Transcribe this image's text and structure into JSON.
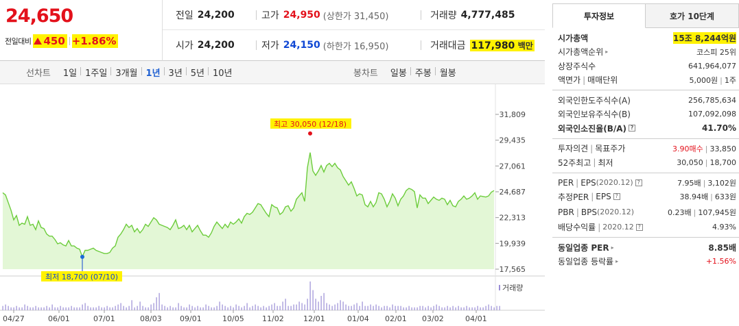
{
  "price": {
    "current": "24,650",
    "change_label": "전일대비",
    "change_amount": "450",
    "change_pct": "+1.86%"
  },
  "stats": {
    "prev_close": {
      "label": "전일",
      "value": "24,200"
    },
    "high": {
      "label": "고가",
      "value": "24,950",
      "sub": "(상한가 31,450)"
    },
    "volume": {
      "label": "거래량",
      "value": "4,777,485"
    },
    "open": {
      "label": "시가",
      "value": "24,200"
    },
    "low": {
      "label": "저가",
      "value": "24,150",
      "sub": "(하한가 16,950)"
    },
    "trade_value": {
      "label": "거래대금",
      "value": "117,980",
      "unit": "백만"
    }
  },
  "tabs": {
    "line_chart_label": "선차트",
    "periods": [
      "1일",
      "1주일",
      "3개월",
      "1년",
      "3년",
      "5년",
      "10년"
    ],
    "active_period": "1년",
    "candle_chart_label": "봉차트",
    "candle_periods": [
      "일봉",
      "주봉",
      "월봉"
    ]
  },
  "chart_data": {
    "type": "area",
    "x_tick_labels": [
      "04/27",
      "06/01",
      "07/01",
      "08/03",
      "09/01",
      "10/05",
      "11/02",
      "12/01",
      "01/04",
      "02/01",
      "03/02",
      "04/01"
    ],
    "y_tick_labels": [
      "31,809",
      "29,435",
      "27,061",
      "24,687",
      "22,313",
      "19,939",
      "17,565"
    ],
    "ylim": [
      17565,
      31809
    ],
    "max_annotation": "최고 30,050 (12/18)",
    "min_annotation": "최저 18,700 (07/10)",
    "volume_label": "거래량",
    "price_series": [
      24600,
      24400,
      23700,
      23000,
      22100,
      22500,
      21600,
      21800,
      21700,
      22400,
      21600,
      21700,
      21200,
      22000,
      21400,
      21300,
      20800,
      20600,
      20600,
      20300,
      19900,
      20000,
      19800,
      19700,
      20200,
      19700,
      19700,
      19500,
      19400,
      18700,
      19300,
      19300,
      19400,
      19500,
      19300,
      19200,
      19100,
      19000,
      19000,
      19100,
      19500,
      19700,
      20500,
      20800,
      21200,
      21700,
      21400,
      21600,
      21000,
      21300,
      20900,
      21200,
      21700,
      21500,
      21900,
      22300,
      22100,
      21700,
      21600,
      21500,
      21400,
      21200,
      21600,
      22100,
      21300,
      21400,
      21600,
      21200,
      21600,
      21000,
      21300,
      21600,
      21100,
      20700,
      20700,
      20500,
      20900,
      21500,
      21900,
      21600,
      21300,
      21700,
      21400,
      21900,
      21700,
      21900,
      22200,
      21800,
      22400,
      22700,
      22600,
      22800,
      23200,
      23600,
      23500,
      23100,
      22700,
      22400,
      23500,
      23300,
      23200,
      22600,
      22800,
      23300,
      23400,
      22900,
      23200,
      24000,
      24300,
      24600,
      23800,
      26900,
      28300,
      26600,
      26200,
      26600,
      27100,
      26500,
      27100,
      27300,
      27000,
      27300,
      26900,
      26700,
      26100,
      25700,
      25300,
      25600,
      25000,
      24300,
      24500,
      24400,
      23500,
      23300,
      23800,
      23300,
      23700,
      24600,
      24500,
      24000,
      23300,
      23800,
      24500,
      24100,
      23400,
      24000,
      24300,
      24800,
      25000,
      24900,
      24700,
      23200,
      24400,
      24100,
      24100,
      23600,
      23900,
      24200,
      24000,
      23900,
      24100,
      24000,
      23500,
      23900,
      23400,
      23300,
      23800,
      24000,
      24300,
      24000,
      24100,
      24300,
      24600,
      24000,
      24300,
      24250,
      24200,
      24300,
      24650,
      24800
    ],
    "volume_series": [
      3,
      4,
      3,
      2,
      2,
      3,
      2,
      2,
      4,
      3,
      2,
      2,
      3,
      2,
      2,
      2,
      3,
      2,
      4,
      2,
      2,
      3,
      2,
      2,
      2,
      3,
      2,
      2,
      2,
      4,
      5,
      3,
      2,
      2,
      2,
      3,
      2,
      2,
      3,
      2,
      2,
      3,
      4,
      5,
      3,
      2,
      3,
      7,
      2,
      3,
      6,
      3,
      2,
      2,
      4,
      5,
      9,
      12,
      4,
      3,
      2,
      3,
      2,
      2,
      5,
      3,
      2,
      2,
      4,
      3,
      2,
      3,
      2,
      2,
      4,
      3,
      2,
      2,
      3,
      6,
      4,
      3,
      2,
      3,
      2,
      4,
      3,
      2,
      3,
      5,
      2,
      3,
      4,
      3,
      2,
      3,
      2,
      3,
      4,
      5,
      3,
      3,
      6,
      8,
      3,
      3,
      4,
      4,
      6,
      5,
      4,
      8,
      20,
      14,
      8,
      6,
      10,
      12,
      5,
      4,
      3,
      4,
      5,
      7,
      6,
      4,
      3,
      3,
      4,
      5,
      3,
      6,
      3,
      3,
      4,
      3,
      4,
      3,
      2,
      3,
      3,
      2,
      4,
      3,
      3,
      3,
      2,
      2,
      3,
      2,
      2,
      2,
      3,
      3,
      2,
      3,
      2,
      3,
      4,
      3,
      2,
      2,
      3,
      2,
      3,
      2,
      3,
      2,
      2,
      3,
      2,
      2,
      2,
      3,
      2,
      2,
      3,
      4,
      3,
      2,
      3,
      3
    ]
  },
  "info_panel": {
    "tab_active": "투자정보",
    "tab_inactive": "호가 10단계",
    "market_cap": {
      "label": "시가총액",
      "value": "15조 8,244억원"
    },
    "market_cap_rank": {
      "label": "시가총액순위",
      "value": "코스피 25위"
    },
    "shares": {
      "label": "상장주식수",
      "value": "641,964,077"
    },
    "par_label": "액면가",
    "trade_unit_label": "매매단위",
    "par_value": "5,000원",
    "trade_unit_value": "1주",
    "foreign_limit": {
      "label": "외국인한도주식수(A)",
      "value": "256,785,634"
    },
    "foreign_hold": {
      "label": "외국인보유주식수(B)",
      "value": "107,092,098"
    },
    "foreign_ratio": {
      "label": "외국인소진율(B/A)",
      "value": "41.70%"
    },
    "opinion_label": "투자의견",
    "target_label": "목표주가",
    "opinion_value": "3.90매수",
    "target_value": "33,850",
    "week52_high_label": "52주최고",
    "week52_low_label": "최저",
    "week52_high_value": "30,050",
    "week52_low_value": "18,700",
    "per_label": "PER",
    "eps_label": "EPS",
    "eps_date": "(2020.12)",
    "per_value": "7.95배",
    "eps_value": "3,102원",
    "est_per_label": "추정PER",
    "est_eps_label": "EPS",
    "est_per_value": "38.94배",
    "est_eps_value": "633원",
    "pbr_label": "PBR",
    "bps_label": "BPS",
    "bps_date": "(2020.12)",
    "pbr_value": "0.23배",
    "bps_value": "107,945원",
    "div_label": "배당수익률",
    "div_date": "2020.12",
    "div_value": "4.93%",
    "sector_per": {
      "label": "동일업종 PER",
      "value": "8.85배"
    },
    "sector_rate": {
      "label": "동일업종 등락률",
      "value": "+1.56%"
    }
  }
}
